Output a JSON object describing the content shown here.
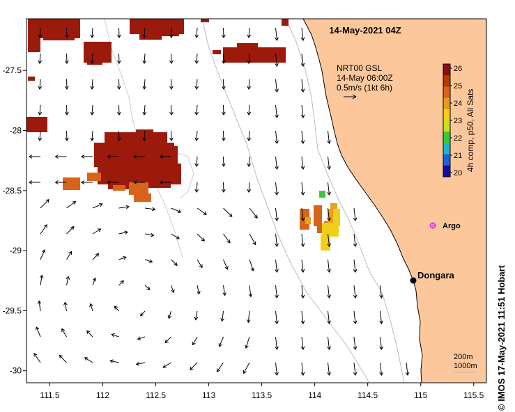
{
  "map": {
    "title": "14-May-2021 04Z",
    "x_ticks": [
      "111.5",
      "112",
      "112.5",
      "113",
      "113.5",
      "114",
      "114.5",
      "115",
      "115.5"
    ],
    "y_ticks": [
      "-27.5",
      "-28",
      "-28.5",
      "-29",
      "-29.5",
      "-30"
    ],
    "lon_range": [
      111.28,
      115.62
    ],
    "lat_range": [
      -27.07,
      -30.1
    ],
    "land_color": "#fcc89b",
    "sea_color": "#ffffff"
  },
  "current_legend": {
    "line1": "NRT00 GSL",
    "line2": "14-May 06:00Z",
    "line3": "0.5m/s (1kt 6h)"
  },
  "colorbar": {
    "ticks": [
      "26",
      "25",
      "24",
      "23",
      "22",
      "21",
      "20"
    ],
    "label": "4h comp, p50, All Sats",
    "min": 20,
    "max": 26
  },
  "places": {
    "dongara_label": "Dongara",
    "dongara_lon": 114.93,
    "dongara_lat": -29.25,
    "argo_label": "Argo",
    "argo_lon": 115.1,
    "argo_lat": -28.82,
    "argo_color": "#e040e0"
  },
  "isobaths": {
    "label1": "200m",
    "label2": "1000m"
  },
  "credit": "© IMOS 17-May-2021 11:51 Hobart"
}
